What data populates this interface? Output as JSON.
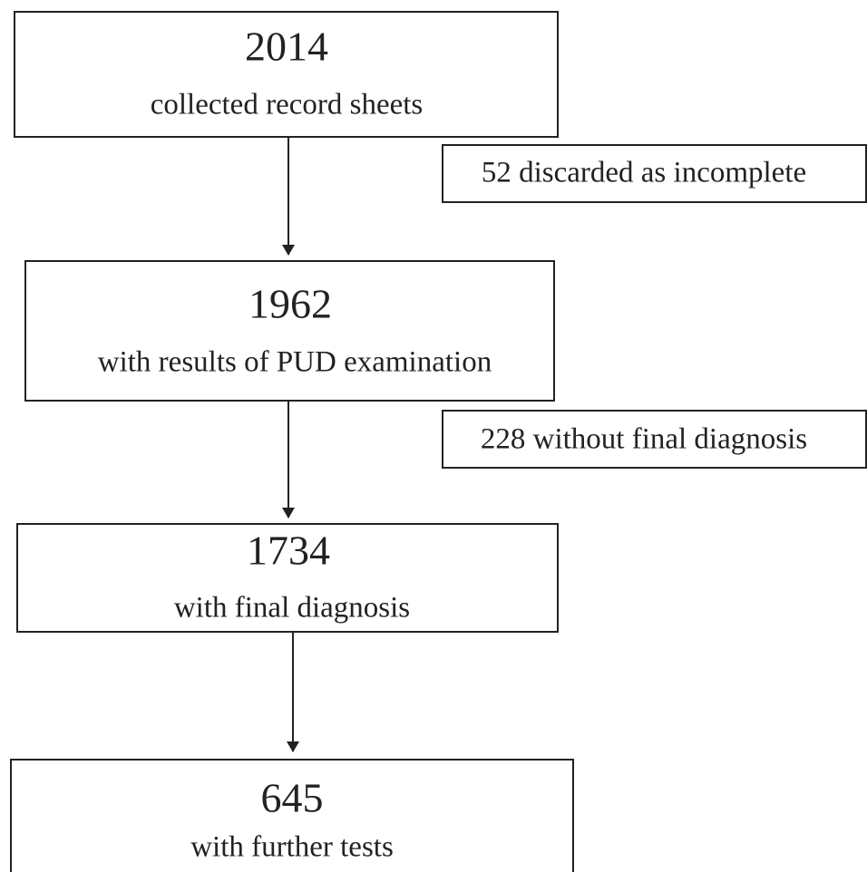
{
  "nodes": [
    {
      "count": 2014,
      "label": "collected record sheets"
    },
    {
      "count": 1962,
      "label": "with results of PUD examination"
    },
    {
      "count": 1734,
      "label": "with final diagnosis"
    },
    {
      "count": 645,
      "label": "with further tests"
    }
  ],
  "exclusions": [
    {
      "label": "52 discarded as incomplete"
    },
    {
      "label": "228 without final diagnosis"
    }
  ]
}
